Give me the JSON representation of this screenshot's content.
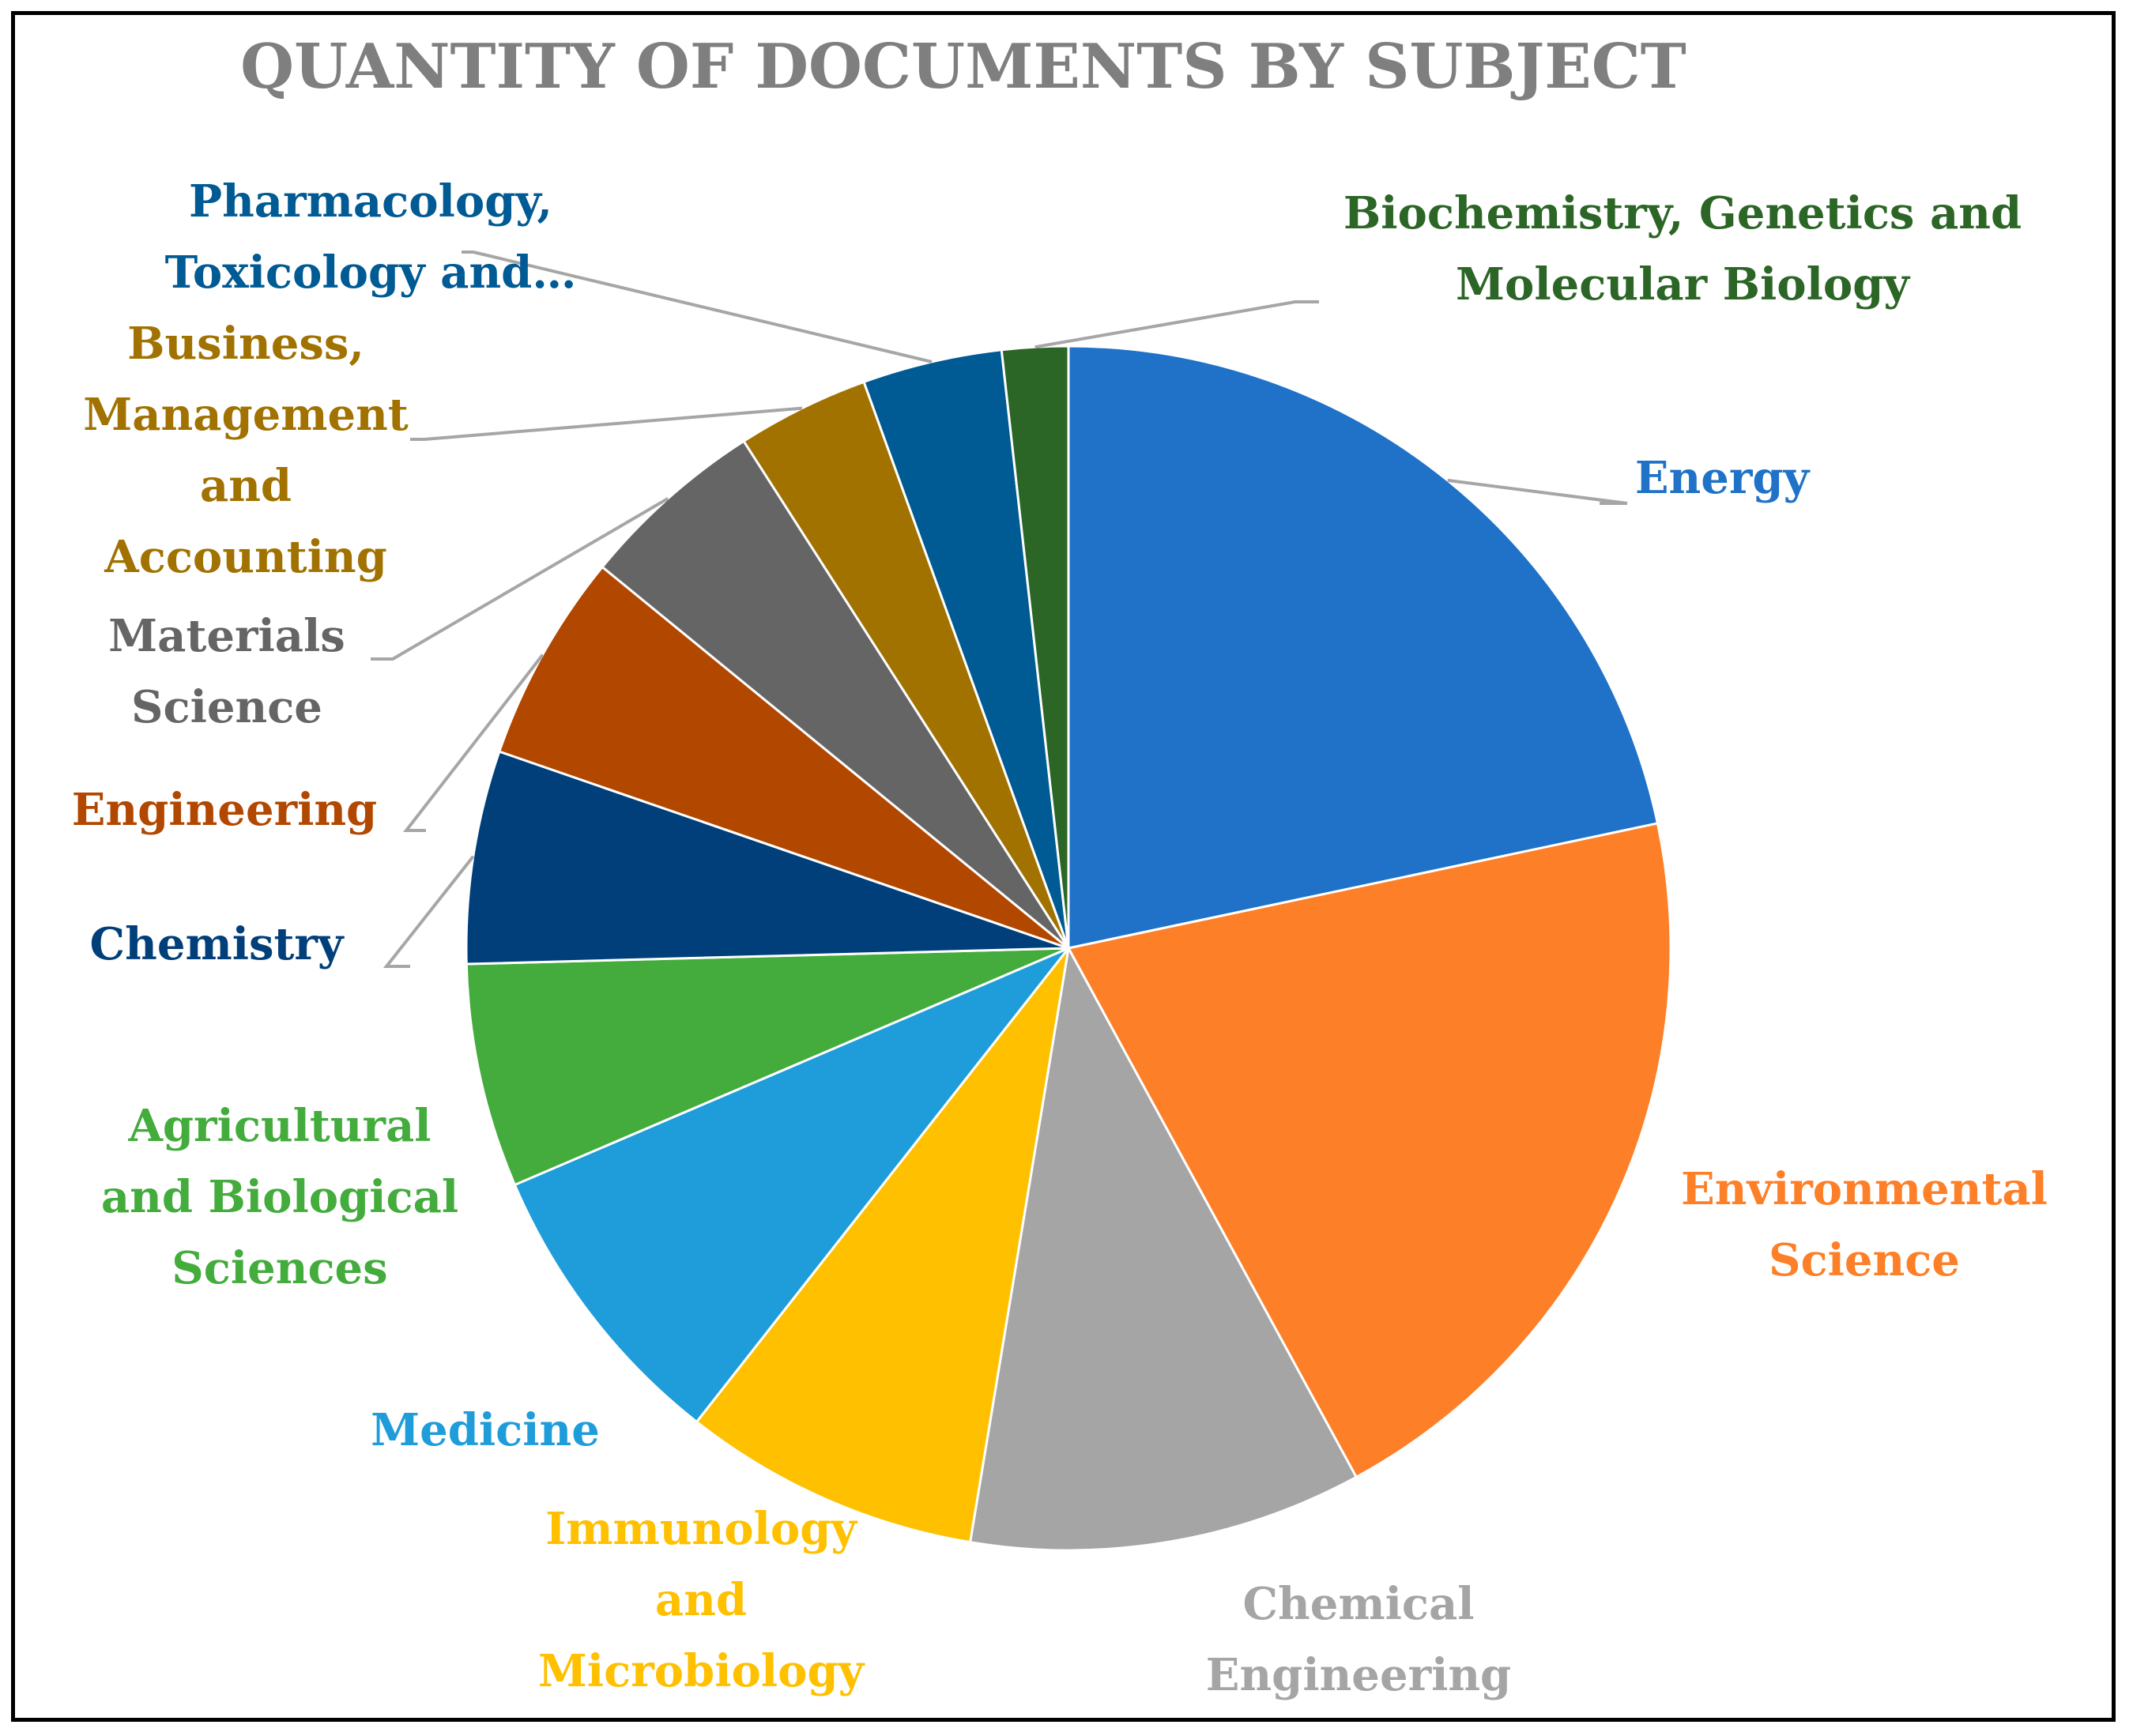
{
  "chart_data": {
    "type": "pie",
    "title": "QUANTITY OF DOCUMENTS BY SUBJECT",
    "start_angle": "12 o'clock",
    "direction": "clockwise",
    "legend": "none (direct labels with leader lines)",
    "value_unit": "percent of documents",
    "slices": [
      {
        "label": "Energy",
        "value": 22.0,
        "color": "#1F72C8"
      },
      {
        "label": "Environmental Science",
        "value": 20.7,
        "color": "#FD7F28"
      },
      {
        "label": "Chemical Engineering",
        "value": 10.7,
        "color": "#A5A5A5"
      },
      {
        "label": "Immunology and Microbiology",
        "value": 8.1,
        "color": "#FFC000"
      },
      {
        "label": "Medicine",
        "value": 8.1,
        "color": "#1F9CDA"
      },
      {
        "label": "Agricultural and Biological Sciences",
        "value": 6.1,
        "color": "#43AC3C"
      },
      {
        "label": "Chemistry",
        "value": 5.8,
        "color": "#003F7A"
      },
      {
        "label": "Engineering",
        "value": 5.7,
        "color": "#B24700"
      },
      {
        "label": "Materials Science",
        "value": 5.1,
        "color": "#656565"
      },
      {
        "label": "Business, Management and Accounting",
        "value": 3.6,
        "color": "#A17200"
      },
      {
        "label": "Pharmacology, Toxicology and…",
        "value": 3.8,
        "color": "#005A93"
      },
      {
        "label": "Biochemistry, Genetics and Molecular Biology",
        "value": 1.8,
        "color": "#2C6626"
      }
    ]
  },
  "colors": {
    "title": "#7F7F7F",
    "leader_line": "#A6A6A6",
    "border": "#000000",
    "slice_edge": "#FFFFFF"
  }
}
